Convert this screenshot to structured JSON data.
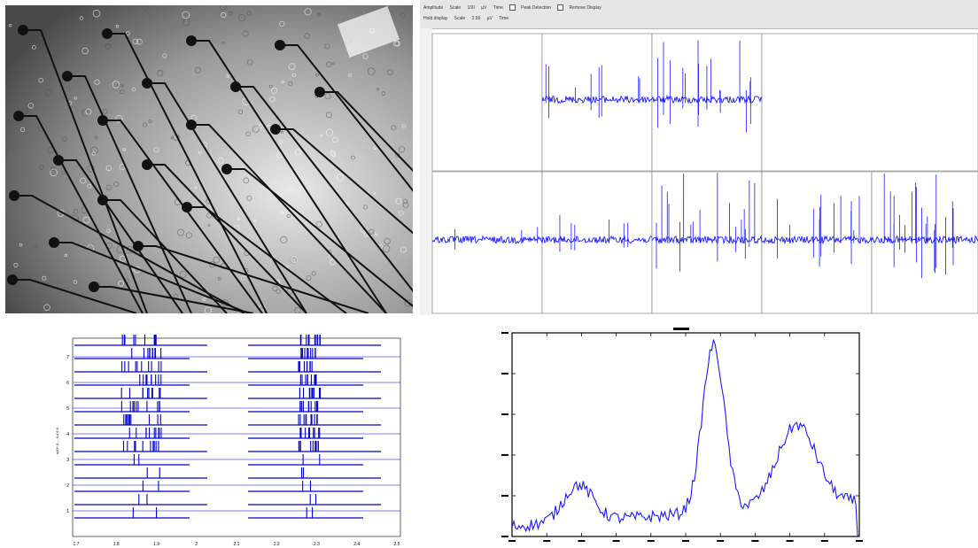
{
  "toolbar": {
    "row1": [
      "Amplitude",
      "Scale",
      "100",
      "µV",
      "Time",
      "Peak Detection",
      "Remove Display"
    ],
    "row2": [
      "Hold display",
      "Scale",
      "2.56",
      "µV",
      "Time"
    ]
  },
  "colors": {
    "trace": "#1a1aff",
    "raster_line": "#0000cc",
    "axis": "#000000",
    "grid": "#cfcfcf",
    "micro_bg": "#8a8a8a",
    "electrode": "#111111"
  },
  "raster_labels": {
    "y_ticks": [
      "1",
      "2",
      "3",
      "4",
      "5",
      "6",
      "7"
    ],
    "x_ticks": [
      "1.7",
      "1.8",
      "1.9",
      "2",
      "2.1",
      "2.2",
      "2.3",
      "2.4",
      "2.5"
    ],
    "y_axis_text": "x10^-3 ... 6.4 6.6"
  },
  "histogram": {
    "title": "",
    "y_ticks": [
      "",
      "",
      "",
      "",
      ""
    ]
  }
}
